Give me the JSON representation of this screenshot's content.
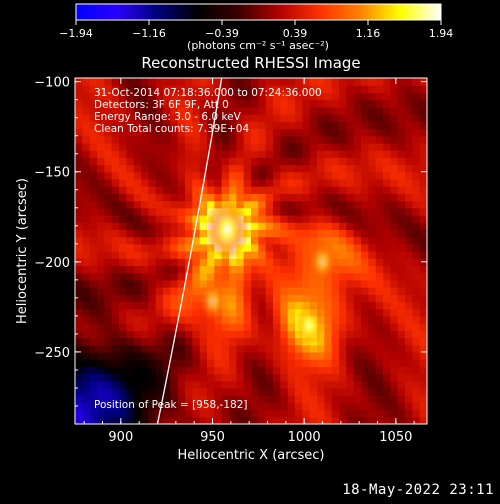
{
  "colorbar": {
    "ticks": [
      "-1.94",
      "-1.16",
      "-0.39",
      "0.39",
      "1.16",
      "1.94"
    ],
    "units": "(photons cm⁻² s⁻¹ asec⁻²)",
    "colors": [
      "#0000ff",
      "#2a00ff",
      "#00007a",
      "#000000",
      "#3a0000",
      "#b00000",
      "#ff3000",
      "#ff8000",
      "#ffff00",
      "#ffffff"
    ]
  },
  "chart_data": {
    "type": "heatmap",
    "title": "Reconstructed RHESSI Image",
    "xlabel": "Heliocentric X (arcsec)",
    "ylabel": "Heliocentric Y (arcsec)",
    "xlim": [
      875,
      1067
    ],
    "ylim": [
      -290,
      -98
    ],
    "x_ticks": [
      900,
      950,
      1000,
      1050
    ],
    "y_ticks": [
      -100,
      -150,
      -200,
      -250
    ],
    "x_tick_labels": [
      "900",
      "950",
      "1000",
      "1050"
    ],
    "y_tick_labels": [
      "−100",
      "−150",
      "−200",
      "−250"
    ],
    "color_range": [
      -1.94,
      1.94
    ],
    "sources": [
      {
        "x": 958,
        "y": -182,
        "peak": 1.94
      },
      {
        "x": 1003,
        "y": -235,
        "peak": 1.05
      },
      {
        "x": 950,
        "y": -222,
        "peak": 0.8
      },
      {
        "x": 1010,
        "y": -200,
        "peak": 0.75
      }
    ],
    "limb_arc": [
      [
        955,
        -98
      ],
      [
        940,
        -190
      ],
      [
        920,
        -290
      ]
    ],
    "info_lines": [
      "31-Oct-2014 07:18:36.000 to 07:24:36.000",
      "Detectors: 3F 6F 9F, Att 0",
      "Energy Range: 3.0 - 6.0 keV",
      "Clean    Total counts: 7.39E+04"
    ],
    "peak_label": "Position of Peak = [958,-182]"
  },
  "footer": {
    "timestamp": "18-May-2022 23:11"
  }
}
